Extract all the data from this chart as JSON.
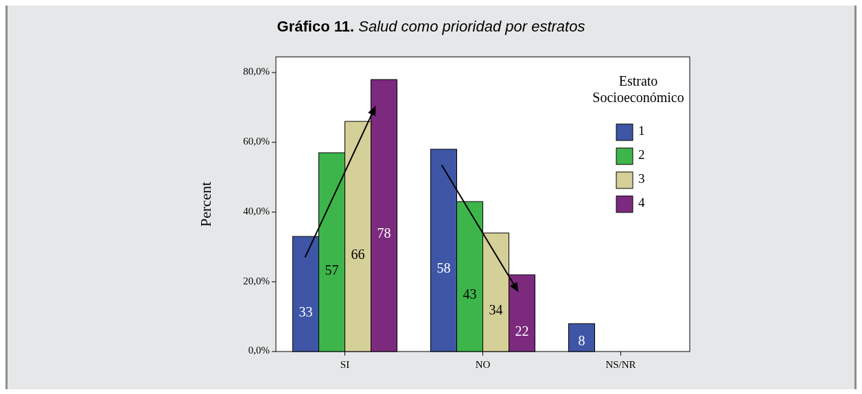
{
  "chart_data": {
    "type": "bar",
    "title": "Gráfico 11. Salud como prioridad por estratos",
    "ylabel": "Percent",
    "legend_title": "Estrato Socioeconómico",
    "categories": [
      "SI",
      "NO",
      "NS/NR"
    ],
    "series": [
      {
        "name": "1",
        "color": "#3f56a6",
        "values": [
          33,
          58,
          8
        ]
      },
      {
        "name": "2",
        "color": "#3db54b",
        "values": [
          57,
          43,
          null
        ]
      },
      {
        "name": "3",
        "color": "#d5cf98",
        "values": [
          66,
          34,
          null
        ]
      },
      {
        "name": "4",
        "color": "#7c2a7e",
        "values": [
          78,
          22,
          null
        ]
      }
    ],
    "ylim": [
      0,
      84.5
    ],
    "yticks": [
      {
        "value": 0,
        "label": "0,0%"
      },
      {
        "value": 20,
        "label": "20,0%"
      },
      {
        "value": 40,
        "label": "40,0%"
      },
      {
        "value": 60,
        "label": "60,0%"
      },
      {
        "value": 80,
        "label": "80,0%"
      }
    ],
    "data_labels": true,
    "legend": "top right",
    "grid": false
  }
}
